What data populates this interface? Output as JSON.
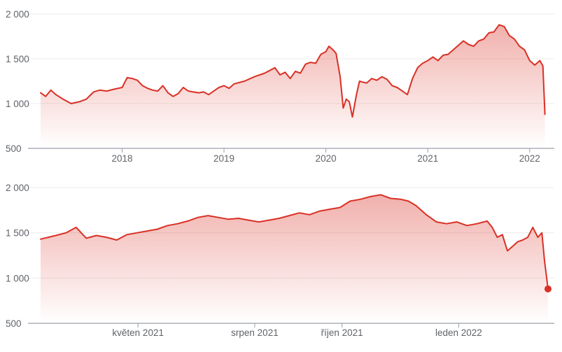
{
  "colors": {
    "line": "#d93025",
    "area": "#d93025",
    "text": "#5f6368",
    "grid": "#ececec",
    "axis": "#9aa0a6"
  },
  "chart_data": [
    {
      "type": "area",
      "title": "",
      "xlabel": "",
      "ylabel": "",
      "x_domain": [
        2017.2,
        2022.18
      ],
      "ylim": [
        500,
        2000
      ],
      "yticks": [
        "500",
        "1 000",
        "1 500",
        "2 000"
      ],
      "ytick_values": [
        500,
        1000,
        1500,
        2000
      ],
      "xticks": [
        {
          "label": "2018",
          "value": 2018
        },
        {
          "label": "2019",
          "value": 2019
        },
        {
          "label": "2020",
          "value": 2020
        },
        {
          "label": "2021",
          "value": 2021
        },
        {
          "label": "2022",
          "value": 2022
        }
      ],
      "grid": true,
      "end_marker": false,
      "series": [
        {
          "x": [
            2017.2,
            2017.25,
            2017.3,
            2017.35,
            2017.42,
            2017.5,
            2017.58,
            2017.65,
            2017.72,
            2017.78,
            2017.85,
            2017.92,
            2018.0,
            2018.05,
            2018.1,
            2018.15,
            2018.2,
            2018.25,
            2018.3,
            2018.35,
            2018.4,
            2018.45,
            2018.5,
            2018.55,
            2018.6,
            2018.65,
            2018.7,
            2018.75,
            2018.8,
            2018.85,
            2018.9,
            2018.95,
            2019.0,
            2019.05,
            2019.1,
            2019.2,
            2019.3,
            2019.4,
            2019.5,
            2019.55,
            2019.6,
            2019.65,
            2019.7,
            2019.75,
            2019.8,
            2019.85,
            2019.9,
            2019.95,
            2020.0,
            2020.03,
            2020.07,
            2020.1,
            2020.14,
            2020.17,
            2020.2,
            2020.23,
            2020.26,
            2020.3,
            2020.33,
            2020.36,
            2020.4,
            2020.45,
            2020.5,
            2020.55,
            2020.6,
            2020.65,
            2020.7,
            2020.75,
            2020.8,
            2020.85,
            2020.9,
            2020.95,
            2021.0,
            2021.05,
            2021.1,
            2021.15,
            2021.2,
            2021.25,
            2021.3,
            2021.35,
            2021.4,
            2021.45,
            2021.5,
            2021.55,
            2021.6,
            2021.65,
            2021.7,
            2021.75,
            2021.8,
            2021.85,
            2021.9,
            2021.95,
            2022.0,
            2022.05,
            2022.1,
            2022.13,
            2022.15
          ],
          "values": [
            1120,
            1080,
            1150,
            1100,
            1050,
            1000,
            1020,
            1050,
            1130,
            1150,
            1140,
            1160,
            1180,
            1290,
            1280,
            1260,
            1200,
            1170,
            1150,
            1140,
            1200,
            1120,
            1080,
            1110,
            1180,
            1140,
            1130,
            1120,
            1130,
            1100,
            1140,
            1180,
            1200,
            1170,
            1220,
            1250,
            1300,
            1340,
            1400,
            1320,
            1350,
            1280,
            1360,
            1340,
            1440,
            1460,
            1450,
            1550,
            1580,
            1640,
            1600,
            1560,
            1300,
            950,
            1050,
            1020,
            850,
            1100,
            1250,
            1240,
            1230,
            1280,
            1260,
            1300,
            1270,
            1200,
            1180,
            1140,
            1100,
            1280,
            1400,
            1450,
            1480,
            1520,
            1480,
            1540,
            1550,
            1600,
            1650,
            1700,
            1660,
            1640,
            1700,
            1720,
            1790,
            1800,
            1880,
            1860,
            1760,
            1720,
            1640,
            1600,
            1480,
            1430,
            1480,
            1420,
            880
          ]
        }
      ]
    },
    {
      "type": "area",
      "title": "",
      "xlabel": "",
      "ylabel": "",
      "x_domain": [
        0,
        100
      ],
      "ylim": [
        500,
        2000
      ],
      "yticks": [
        "500",
        "1 000",
        "1 500",
        "2 000"
      ],
      "ytick_values": [
        500,
        1000,
        1500,
        2000
      ],
      "xticks": [
        {
          "label": "květen 2021",
          "value": 19.2
        },
        {
          "label": "srpen 2021",
          "value": 42.2
        },
        {
          "label": "říjen 2021",
          "value": 59.4
        },
        {
          "label": "leden 2022",
          "value": 82.4
        }
      ],
      "grid": true,
      "end_marker": true,
      "series": [
        {
          "x": [
            0,
            1.5,
            3,
            5,
            7,
            9,
            11,
            13,
            15,
            17,
            19,
            21,
            23,
            25,
            27,
            29,
            31,
            33,
            35,
            37,
            39,
            41,
            43,
            45,
            47,
            49,
            51,
            53,
            55,
            57,
            59,
            61,
            63,
            65,
            67,
            69,
            71,
            72.5,
            74,
            76,
            78,
            80,
            82,
            84,
            86,
            88,
            89,
            90,
            91,
            92,
            93,
            94,
            95,
            96,
            97,
            98,
            98.8,
            99.3,
            100
          ],
          "values": [
            1430,
            1450,
            1470,
            1500,
            1560,
            1440,
            1470,
            1450,
            1420,
            1480,
            1500,
            1520,
            1540,
            1580,
            1600,
            1630,
            1670,
            1690,
            1670,
            1650,
            1660,
            1640,
            1620,
            1640,
            1660,
            1690,
            1720,
            1700,
            1740,
            1760,
            1780,
            1850,
            1870,
            1900,
            1920,
            1880,
            1870,
            1850,
            1800,
            1700,
            1620,
            1600,
            1620,
            1580,
            1600,
            1630,
            1560,
            1450,
            1480,
            1300,
            1350,
            1400,
            1420,
            1450,
            1560,
            1450,
            1500,
            1200,
            880
          ]
        }
      ]
    }
  ]
}
